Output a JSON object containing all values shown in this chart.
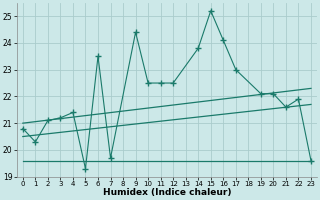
{
  "xlabel": "Humidex (Indice chaleur)",
  "bg_color": "#cce8e8",
  "grid_color": "#aacccc",
  "line_color": "#1a7a6a",
  "xlim": [
    -0.5,
    23.5
  ],
  "ylim": [
    19.0,
    25.5
  ],
  "yticks": [
    19,
    20,
    21,
    22,
    23,
    24,
    25
  ],
  "xticks": [
    0,
    1,
    2,
    3,
    4,
    5,
    6,
    7,
    8,
    9,
    10,
    11,
    12,
    13,
    14,
    15,
    16,
    17,
    18,
    19,
    20,
    21,
    22,
    23
  ],
  "line1_x": [
    0,
    1,
    2,
    3,
    4,
    5,
    6,
    7,
    9,
    10,
    11,
    12,
    14,
    15,
    16,
    17,
    19,
    20,
    21,
    22,
    23
  ],
  "line1_y": [
    20.8,
    20.3,
    21.1,
    21.2,
    21.4,
    19.3,
    23.5,
    19.7,
    24.4,
    22.5,
    22.5,
    22.5,
    23.8,
    25.2,
    24.1,
    23.0,
    22.1,
    22.1,
    21.6,
    21.9,
    19.6
  ],
  "line2_x": [
    0,
    23
  ],
  "line2_y": [
    21.0,
    22.3
  ],
  "line3_x": [
    0,
    23
  ],
  "line3_y": [
    19.6,
    19.6
  ],
  "line4_x": [
    0,
    23
  ],
  "line4_y": [
    20.5,
    21.7
  ]
}
